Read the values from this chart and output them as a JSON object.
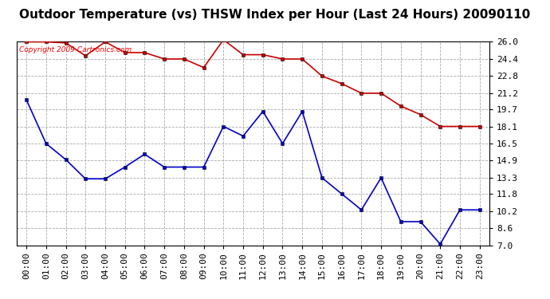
{
  "title": "Outdoor Temperature (vs) THSW Index per Hour (Last 24 Hours) 20090110",
  "copyright_text": "Copyright 2009 Cartronics.com",
  "hours": [
    "00:00",
    "01:00",
    "02:00",
    "03:00",
    "04:00",
    "05:00",
    "06:00",
    "07:00",
    "08:00",
    "09:00",
    "10:00",
    "11:00",
    "12:00",
    "13:00",
    "14:00",
    "15:00",
    "16:00",
    "17:00",
    "18:00",
    "19:00",
    "20:00",
    "21:00",
    "22:00",
    "23:00"
  ],
  "blue_data": [
    20.6,
    16.5,
    15.0,
    13.2,
    13.2,
    14.3,
    15.5,
    14.3,
    14.3,
    14.3,
    18.1,
    17.2,
    19.5,
    16.5,
    19.5,
    13.3,
    11.8,
    10.3,
    13.3,
    9.2,
    9.2,
    7.1,
    10.3,
    10.3
  ],
  "red_data": [
    26.0,
    26.0,
    25.9,
    24.7,
    26.0,
    25.0,
    25.0,
    24.4,
    24.4,
    23.6,
    26.2,
    24.8,
    24.8,
    24.4,
    24.4,
    22.8,
    22.1,
    21.2,
    21.2,
    20.0,
    19.2,
    18.1,
    18.1,
    18.1
  ],
  "ylim_min": 7.0,
  "ylim_max": 26.0,
  "yticks": [
    7.0,
    8.6,
    10.2,
    11.8,
    13.3,
    14.9,
    16.5,
    18.1,
    19.7,
    21.2,
    22.8,
    24.4,
    26.0
  ],
  "blue_color": "#0000cc",
  "red_color": "#cc0000",
  "bg_color": "#ffffff",
  "plot_bg_color": "#ffffff",
  "grid_color": "#aaaaaa",
  "title_fontsize": 11,
  "tick_fontsize": 8,
  "copyright_fontsize": 6.5
}
